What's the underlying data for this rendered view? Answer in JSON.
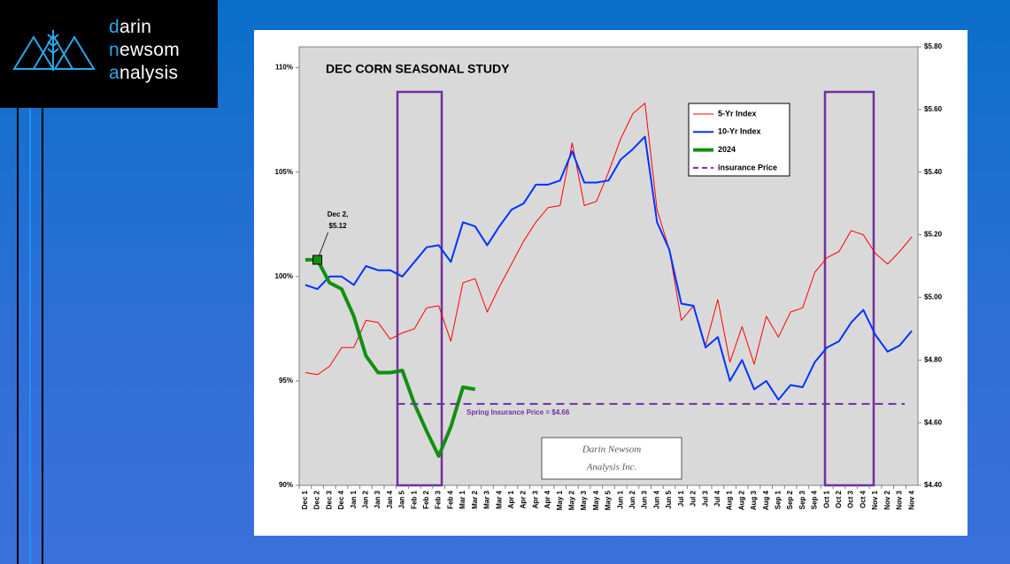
{
  "logo": {
    "lines": [
      "darin",
      "newsom",
      "analysis"
    ]
  },
  "watermark": [
    "Darin Newsom",
    "Analysis Inc."
  ],
  "chart_data": {
    "type": "line",
    "title": "DEC CORN SEASONAL STUDY",
    "categories": [
      "Dec 1",
      "Dec 2",
      "Dec 3",
      "Dec 4",
      "Jan 1",
      "Jan 2",
      "Jan 3",
      "Jan 4",
      "Jan 5",
      "Feb 1",
      "Feb 2",
      "Feb 3",
      "Feb 4",
      "Mar 1",
      "Mar 2",
      "Mar 3",
      "Mar 4",
      "Apr 1",
      "Apr 2",
      "Apr 3",
      "Apr 4",
      "May 1",
      "May 2",
      "May 3",
      "May 4",
      "May 5",
      "Jun 1",
      "Jun 2",
      "Jun 3",
      "Jun 4",
      "Jun 5",
      "Jul 1",
      "Jul 2",
      "Jul 3",
      "Jul 4",
      "Aug 1",
      "Aug 2",
      "Aug 3",
      "Aug 4",
      "Sep 1",
      "Sep 2",
      "Sep 3",
      "Sep 4",
      "Oct 1",
      "Oct 2",
      "Oct 3",
      "Oct 4",
      "Nov 1",
      "Nov 2",
      "Nov 3",
      "Nov 4"
    ],
    "series": [
      {
        "name": "5-Yr Index",
        "color": "#ff0000",
        "width": 1,
        "values": [
          95.4,
          95.3,
          95.7,
          96.6,
          96.6,
          97.9,
          97.8,
          97.0,
          97.3,
          97.5,
          98.5,
          98.6,
          96.9,
          99.7,
          99.9,
          98.3,
          99.5,
          100.6,
          101.7,
          102.6,
          103.3,
          103.4,
          106.4,
          103.4,
          103.6,
          105.0,
          106.6,
          107.8,
          108.3,
          103.2,
          101.3,
          97.9,
          98.6,
          96.7,
          98.9,
          95.9,
          97.6,
          95.8,
          98.1,
          97.1,
          98.3,
          98.5,
          100.2,
          100.9,
          101.2,
          102.2,
          102.0,
          101.1,
          100.6,
          101.2,
          101.9
        ]
      },
      {
        "name": "10-Yr Index",
        "color": "#0033ff",
        "width": 2,
        "values": [
          99.6,
          99.4,
          100.0,
          100.0,
          99.6,
          100.5,
          100.3,
          100.3,
          100.0,
          100.7,
          101.4,
          101.5,
          100.7,
          102.6,
          102.4,
          101.5,
          102.4,
          103.2,
          103.5,
          104.4,
          104.4,
          104.6,
          106.0,
          104.5,
          104.5,
          104.6,
          105.6,
          106.1,
          106.7,
          102.6,
          101.3,
          98.7,
          98.6,
          96.6,
          97.1,
          95.0,
          96.0,
          94.6,
          95.0,
          94.1,
          94.8,
          94.7,
          95.9,
          96.6,
          96.9,
          97.8,
          98.4,
          97.2,
          96.4,
          96.7,
          97.4
        ]
      },
      {
        "name": "2024",
        "color": "#109010",
        "width": 4,
        "values": [
          100.8,
          100.8,
          99.7,
          99.4,
          98.1,
          96.2,
          95.4,
          95.4,
          95.5,
          93.9,
          92.6,
          91.4,
          92.8,
          94.7,
          94.6,
          null,
          null,
          null,
          null,
          null,
          null,
          null,
          null,
          null,
          null,
          null,
          null,
          null,
          null,
          null,
          null,
          null,
          null,
          null,
          null,
          null,
          null,
          null,
          null,
          null,
          null,
          null,
          null,
          null,
          null,
          null,
          null,
          null,
          null,
          null,
          null
        ]
      },
      {
        "name": "insurance Price",
        "color": "#7030a0",
        "width": 2,
        "dashed": true,
        "axis": "y2",
        "value": 4.66
      }
    ],
    "ylim": [
      90,
      111
    ],
    "yticks": [
      {
        "value": 90,
        "label": "90%"
      },
      {
        "value": 95,
        "label": "95%"
      },
      {
        "value": 100,
        "label": "100%"
      },
      {
        "value": 105,
        "label": "105%"
      },
      {
        "value": 110,
        "label": "110%"
      }
    ],
    "y2lim": [
      4.4,
      5.8
    ],
    "y2ticks": [
      {
        "value": 4.4,
        "label": "$4.40"
      },
      {
        "value": 4.6,
        "label": "$4.60"
      },
      {
        "value": 4.8,
        "label": "$4.80"
      },
      {
        "value": 5.0,
        "label": "$5.00"
      },
      {
        "value": 5.2,
        "label": "$5.20"
      },
      {
        "value": 5.4,
        "label": "$5.40"
      },
      {
        "value": 5.6,
        "label": "$5.60"
      },
      {
        "value": 5.8,
        "label": "$5.80"
      }
    ],
    "annotations": [
      {
        "lines": [
          "Dec 2,",
          "$5.12"
        ],
        "series": 2,
        "index": 1
      },
      {
        "text": "Spring Insurance Price = $4.66",
        "color": "#7030a0"
      }
    ],
    "legend": "top-right",
    "grid": false
  }
}
